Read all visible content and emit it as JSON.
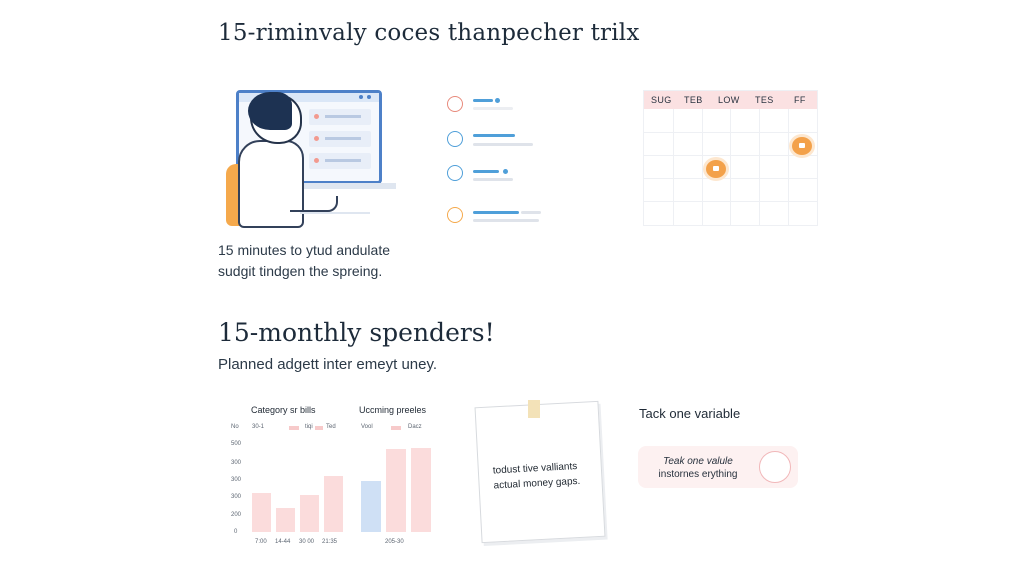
{
  "header": {
    "title": "15-riminvaly coces thanpecher trilx"
  },
  "hero": {
    "caption_line1": "15 minutes to ytud andulate",
    "caption_line2": "sudgit tindgen the spreing."
  },
  "calendar": {
    "days": [
      "SUG",
      "TEB",
      "LOW",
      "TES",
      "FF"
    ]
  },
  "section2": {
    "title": "15-monthly spenders!",
    "subtitle": "Planned adgett inter emeyt uney."
  },
  "charts": [
    {
      "title": "Category sr bills",
      "legend_left": "30-1",
      "legend_items": [
        "tiqi",
        "Ted"
      ],
      "y_ticks": [
        "No",
        "500",
        "300",
        "300",
        "300",
        "200",
        "0"
      ],
      "x_ticks": [
        "7:00",
        "14-44",
        "30 00",
        "21:35"
      ],
      "values": [
        41,
        25,
        39,
        58
      ],
      "colors": [
        "#fbdcdc",
        "#fbdcdc",
        "#fbdcdc",
        "#fbdcdc"
      ]
    },
    {
      "title": "Uccming preeles",
      "legend_left": "Vool",
      "legend_items": [
        "Dacz"
      ],
      "x_ticks": [
        "205-30"
      ],
      "values": [
        53,
        86,
        88
      ],
      "colors": [
        "#cfe0f5",
        "#fbdcdc",
        "#fbdcdc"
      ]
    }
  ],
  "note": {
    "line1": "todust tive valliants",
    "line2": "actual money gaps."
  },
  "toggle_card": {
    "label": "Tack one variable",
    "text_line1": "Teak one valule",
    "text_line2": "instornes erything"
  },
  "colors": {
    "accent_blue": "#4f9fd9",
    "accent_orange": "#f5a94c",
    "pink": "#fbdcdc"
  }
}
